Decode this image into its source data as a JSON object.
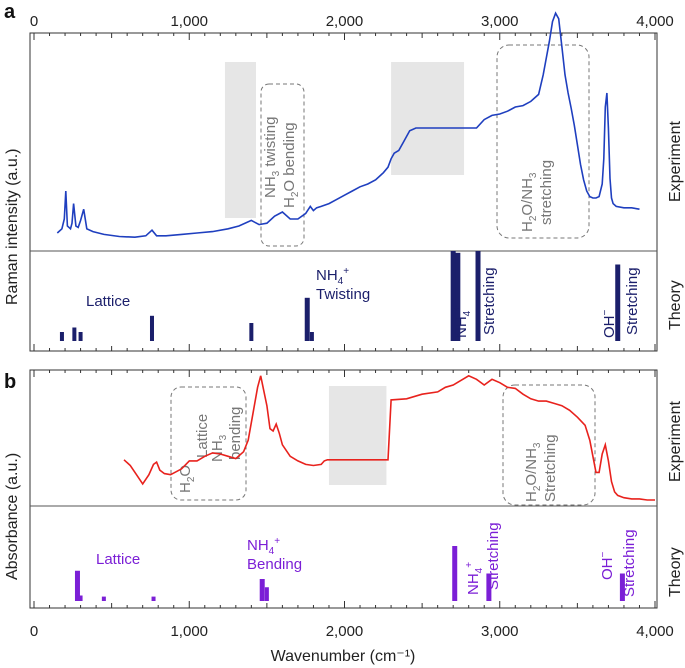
{
  "chart_data": [
    {
      "type": "line",
      "panel": "a",
      "title": "",
      "xlabel": "",
      "ylabel": "Raman intensity (a.u.)",
      "xlim": [
        0,
        4000
      ],
      "x_ticks": [
        "0",
        "1,000",
        "2,000",
        "3,000",
        "4,000"
      ],
      "experiment_label": "Experiment",
      "theory_label": "Theory",
      "series": [
        {
          "name": "Experiment",
          "color": "#1f3fbf",
          "x": [
            150,
            180,
            195,
            205,
            215,
            235,
            245,
            255,
            270,
            285,
            300,
            320,
            340,
            380,
            450,
            550,
            650,
            720,
            760,
            790,
            850,
            950,
            1050,
            1150,
            1250,
            1320,
            1400,
            1450,
            1500,
            1550,
            1600,
            1650,
            1700,
            1750,
            1780,
            1800,
            1820,
            1850,
            1900,
            1950,
            2000,
            2050,
            2100,
            2150,
            2200,
            2250,
            2280,
            2300,
            2320,
            2350,
            2380,
            2420,
            2460,
            2520,
            2580,
            2640,
            2700,
            2760,
            2800,
            2850,
            2900,
            2950,
            3000,
            3050,
            3100,
            3150,
            3200,
            3250,
            3280,
            3300,
            3320,
            3340,
            3360,
            3380,
            3400,
            3420,
            3440,
            3460,
            3480,
            3500,
            3520,
            3540,
            3560,
            3580,
            3600,
            3620,
            3640,
            3660,
            3670,
            3680,
            3690,
            3700,
            3710,
            3720,
            3730,
            3750,
            3800,
            3850,
            3900
          ],
          "values": [
            0.05,
            0.08,
            0.15,
            0.35,
            0.1,
            0.08,
            0.12,
            0.26,
            0.1,
            0.09,
            0.14,
            0.22,
            0.08,
            0.06,
            0.04,
            0.025,
            0.02,
            0.03,
            0.07,
            0.03,
            0.03,
            0.04,
            0.05,
            0.06,
            0.08,
            0.1,
            0.14,
            0.11,
            0.12,
            0.17,
            0.2,
            0.15,
            0.15,
            0.19,
            0.24,
            0.21,
            0.23,
            0.24,
            0.26,
            0.29,
            0.32,
            0.35,
            0.38,
            0.4,
            0.43,
            0.48,
            0.52,
            0.58,
            0.62,
            0.64,
            0.7,
            0.78,
            0.8,
            0.8,
            0.8,
            0.8,
            0.8,
            0.8,
            0.8,
            0.8,
            0.86,
            0.89,
            0.9,
            0.92,
            0.95,
            0.96,
            0.99,
            1.04,
            1.18,
            1.3,
            1.42,
            1.56,
            1.62,
            1.58,
            1.38,
            1.18,
            1.05,
            0.94,
            0.82,
            0.68,
            0.54,
            0.43,
            0.35,
            0.31,
            0.3,
            0.3,
            0.31,
            0.4,
            0.58,
            0.95,
            1.05,
            0.8,
            0.44,
            0.3,
            0.26,
            0.24,
            0.23,
            0.23,
            0.22
          ]
        }
      ],
      "theory": {
        "color": "#1b1f6b",
        "x": [
          180,
          260,
          300,
          760,
          1400,
          1760,
          1790,
          2700,
          2730,
          2860,
          3760
        ],
        "values": [
          0.1,
          0.15,
          0.1,
          0.28,
          0.2,
          0.48,
          0.1,
          1.0,
          0.98,
          1.0,
          0.85
        ]
      },
      "shaded_regions_x": [
        [
          1230,
          1430
        ],
        [
          2300,
          2770
        ]
      ],
      "annotations": [
        {
          "text": "NH3 twisting",
          "line1": "NH",
          "sub1": "3",
          "line1b": " twisting"
        },
        {
          "text": "H2O bending",
          "line2a": "H",
          "sub2": "2",
          "line2b": "O bending"
        },
        {
          "text": "H2O/NH3 stretching",
          "l1a": "H",
          "l1s": "2",
          "l1b": "O/NH",
          "l1s2": "3",
          "l2": "stretching"
        },
        {
          "text": "Lattice"
        },
        {
          "text": "NH4+ Twisting",
          "l1": "NH",
          "sub": "4",
          "sup": "+",
          "l2": "Twisting"
        },
        {
          "text": "NH4+ Stretching",
          "l1": "NH",
          "sub": "4",
          "sup": "+",
          "l2": "Stretching"
        },
        {
          "text": "OH− Stretching",
          "l1": "OH",
          "sup": "−",
          "l2": "Stretching"
        }
      ]
    },
    {
      "type": "line",
      "panel": "b",
      "title": "",
      "xlabel": "Wavenumber (cm⁻¹)",
      "ylabel": "Absorbance (a.u.)",
      "xlim": [
        0,
        4000
      ],
      "x_ticks": [
        "0",
        "1,000",
        "2,000",
        "3,000",
        "4,000"
      ],
      "experiment_label": "Experiment",
      "theory_label": "Theory",
      "series": [
        {
          "name": "Experiment",
          "color": "#e8221d",
          "x": [
            580,
            620,
            660,
            700,
            740,
            770,
            790,
            810,
            840,
            880,
            950,
            1000,
            1050,
            1100,
            1150,
            1200,
            1250,
            1300,
            1350,
            1380,
            1410,
            1440,
            1460,
            1480,
            1500,
            1520,
            1540,
            1560,
            1580,
            1600,
            1650,
            1700,
            1750,
            1800,
            1850,
            1870,
            1890,
            1900,
            1910,
            2000,
            2100,
            2200,
            2260,
            2280,
            2300,
            2400,
            2500,
            2600,
            2650,
            2700,
            2750,
            2800,
            2850,
            2900,
            2950,
            3000,
            3050,
            3100,
            3150,
            3200,
            3250,
            3300,
            3350,
            3400,
            3450,
            3500,
            3550,
            3580,
            3600,
            3620,
            3640,
            3660,
            3680,
            3700,
            3720,
            3740,
            3760,
            3800,
            3850,
            3900,
            3950,
            4000
          ],
          "values": [
            0.35,
            0.3,
            0.22,
            0.14,
            0.22,
            0.31,
            0.33,
            0.26,
            0.23,
            0.22,
            0.27,
            0.34,
            0.34,
            0.38,
            0.41,
            0.4,
            0.38,
            0.36,
            0.42,
            0.52,
            0.75,
            0.98,
            1.08,
            0.95,
            0.82,
            0.62,
            0.6,
            0.66,
            0.58,
            0.48,
            0.38,
            0.34,
            0.31,
            0.3,
            0.31,
            0.34,
            0.35,
            0.35,
            0.35,
            0.35,
            0.35,
            0.35,
            0.35,
            0.35,
            0.87,
            0.88,
            0.92,
            0.94,
            0.98,
            1.0,
            1.04,
            1.08,
            1.05,
            1.0,
            1.05,
            1.02,
            0.98,
            0.97,
            0.92,
            0.88,
            0.86,
            0.86,
            0.84,
            0.82,
            0.78,
            0.72,
            0.65,
            0.52,
            0.38,
            0.24,
            0.24,
            0.4,
            0.48,
            0.34,
            0.16,
            0.07,
            0.04,
            0.02,
            0.01,
            0.01,
            0.0,
            0.0
          ]
        }
      ],
      "theory": {
        "color": "#7b1fd6",
        "x": [
          280,
          300,
          450,
          770,
          1470,
          1500,
          2710,
          2930,
          3790
        ],
        "values": [
          0.55,
          0.1,
          0.08,
          0.08,
          0.4,
          0.25,
          1.0,
          0.5,
          0.5
        ]
      },
      "shaded_regions_x": [
        [
          1900,
          2270
        ]
      ],
      "annotations": [
        {
          "text": "H2O Lattice NH3 bending",
          "a": "H",
          "as": "2",
          "ab": "O",
          "b": "Lattice",
          "c": "NH",
          "cs": "3",
          "d": "bending"
        },
        {
          "text": "H2O/NH3 Stretching",
          "l1a": "H",
          "l1s": "2",
          "l1b": "O/NH",
          "l1s2": "3",
          "l2": "Stretching"
        },
        {
          "text": "Lattice"
        },
        {
          "text": "NH4+ Bending",
          "l1": "NH",
          "sub": "4",
          "sup": "+",
          "l2": "Bending"
        },
        {
          "text": "NH4+ Stretching",
          "l1": "NH",
          "sub": "4",
          "sup": "+",
          "l2": "Stretching"
        },
        {
          "text": "OH− Stretching",
          "l1": "OH",
          "sup": "−",
          "l2": "Stretching"
        }
      ]
    }
  ],
  "panel_labels": [
    "a",
    "b"
  ]
}
